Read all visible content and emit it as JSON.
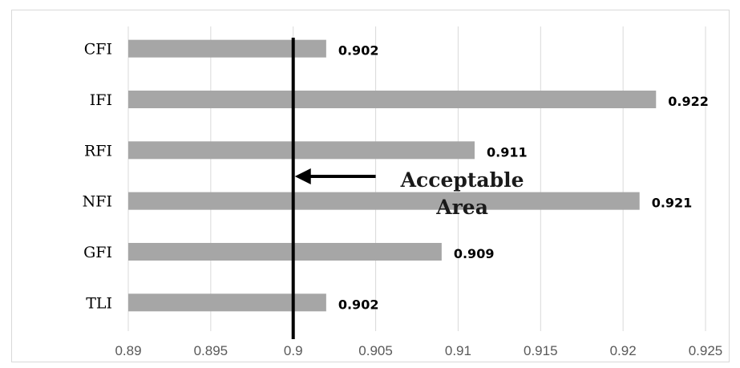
{
  "chart_data": {
    "type": "bar",
    "orientation": "horizontal",
    "categories": [
      "CFI",
      "IFI",
      "RFI",
      "NFI",
      "GFI",
      "TLI"
    ],
    "values": [
      0.902,
      0.922,
      0.911,
      0.921,
      0.909,
      0.902
    ],
    "data_labels": [
      "0.902",
      "0.922",
      "0.911",
      "0.921",
      "0.909",
      "0.902"
    ],
    "xlim": [
      0.89,
      0.925
    ],
    "x_ticks": [
      0.89,
      0.895,
      0.9,
      0.905,
      0.91,
      0.915,
      0.92,
      0.925
    ],
    "x_tick_labels": [
      "0.89",
      "0.895",
      "0.9",
      "0.905",
      "0.91",
      "0.915",
      "0.92",
      "0.925"
    ],
    "vertical_gridlines": true,
    "bar_color": "#a6a6a6",
    "threshold": {
      "value": 0.9,
      "color": "#000000"
    },
    "annotation": {
      "lines": [
        "Acceptable",
        "Area"
      ],
      "arrow_from": 0.905,
      "arrow_to": 0.9,
      "arrow_between_categories": [
        "RFI",
        "NFI"
      ]
    }
  }
}
